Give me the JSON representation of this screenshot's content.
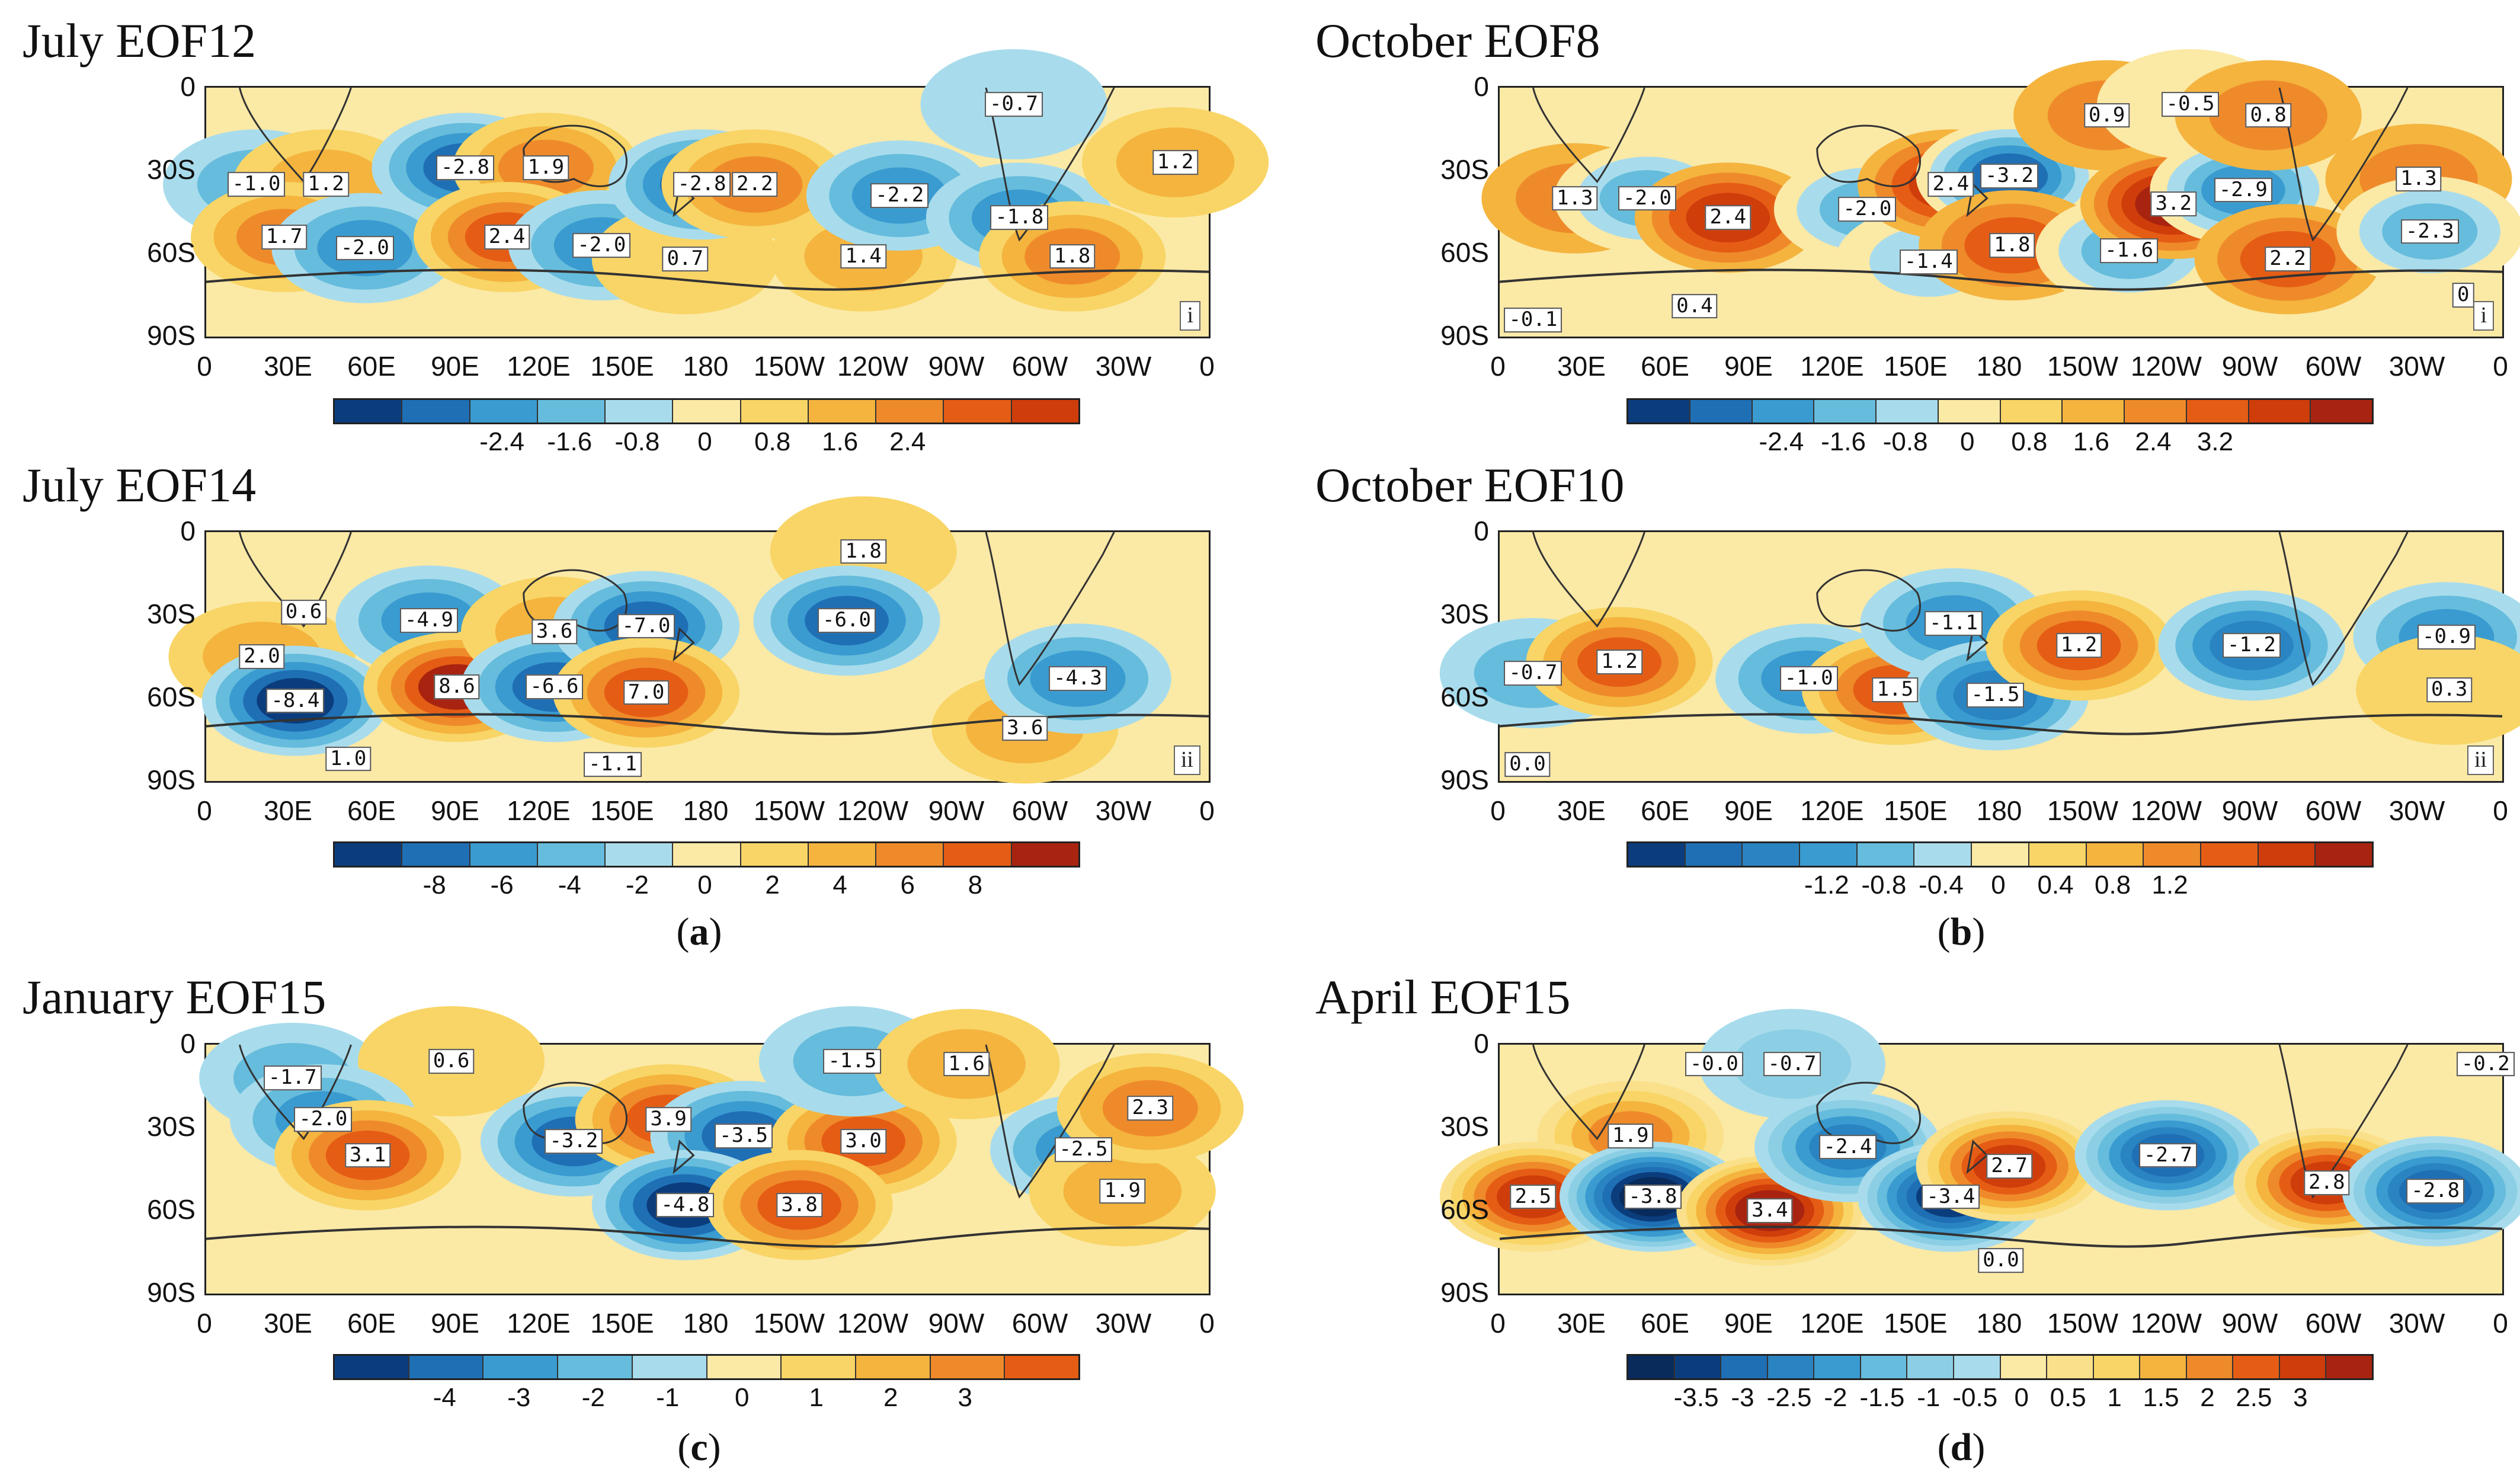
{
  "chart_data": [
    {
      "type": "heatmap",
      "title": "July EOF12",
      "panel": "i",
      "yticks": [
        "0",
        "30S",
        "60S",
        "90S"
      ],
      "xticks": [
        "0",
        "30E",
        "60E",
        "90E",
        "120E",
        "150E",
        "180",
        "150W",
        "120W",
        "90W",
        "60W",
        "30W",
        "0"
      ],
      "labels": [
        {
          "text": "-1.0",
          "lon": 18,
          "lat": -35
        },
        {
          "text": "1.2",
          "lon": 43,
          "lat": -35
        },
        {
          "text": "1.7",
          "lon": 28,
          "lat": -54
        },
        {
          "text": "-2.0",
          "lon": 57,
          "lat": -58
        },
        {
          "text": "-2.8",
          "lon": 93,
          "lat": -29
        },
        {
          "text": "1.9",
          "lon": 122,
          "lat": -29
        },
        {
          "text": "2.4",
          "lon": 108,
          "lat": -54
        },
        {
          "text": "-2.0",
          "lon": 142,
          "lat": -57
        },
        {
          "text": "0.7",
          "lon": 172,
          "lat": -62
        },
        {
          "text": "-2.8",
          "lon": 178,
          "lat": -35
        },
        {
          "text": "2.2",
          "lon": 197,
          "lat": -35
        },
        {
          "text": "1.4",
          "lon": 236,
          "lat": -61
        },
        {
          "text": "-2.2",
          "lon": 249,
          "lat": -39
        },
        {
          "text": "-0.7",
          "lon": 290,
          "lat": -6
        },
        {
          "text": "-1.8",
          "lon": 292,
          "lat": -47
        },
        {
          "text": "1.8",
          "lon": 311,
          "lat": -61
        },
        {
          "text": "1.2",
          "lon": 348,
          "lat": -27
        }
      ],
      "colorbar": {
        "ticks": [
          "-2.4",
          "-1.6",
          "-0.8",
          "0",
          "0.8",
          "1.6",
          "2.4"
        ],
        "colors": [
          "#0b3d7d",
          "#1f6fb5",
          "#3a9bd0",
          "#66bcdc",
          "#a8dcec",
          "#fbe9a6",
          "#f8d566",
          "#f4b43e",
          "#ef8a2a",
          "#e55d15",
          "#cf3d0b"
        ]
      }
    },
    {
      "type": "heatmap",
      "title": "October EOF8",
      "panel": "i",
      "yticks": [
        "0",
        "30S",
        "60S",
        "90S"
      ],
      "xticks": [
        "0",
        "30E",
        "60E",
        "90E",
        "120E",
        "150E",
        "180",
        "150W",
        "120W",
        "90W",
        "60W",
        "30W",
        "0"
      ],
      "labels": [
        {
          "text": "1.3",
          "lon": 27,
          "lat": -40
        },
        {
          "text": "-2.0",
          "lon": 53,
          "lat": -40
        },
        {
          "text": "2.4",
          "lon": 82,
          "lat": -47
        },
        {
          "text": "-2.0",
          "lon": 132,
          "lat": -44
        },
        {
          "text": "-1.4",
          "lon": 154,
          "lat": -63
        },
        {
          "text": "2.4",
          "lon": 162,
          "lat": -35
        },
        {
          "text": "-3.2",
          "lon": 183,
          "lat": -32
        },
        {
          "text": "1.8",
          "lon": 184,
          "lat": -57
        },
        {
          "text": "0.9",
          "lon": 218,
          "lat": -10
        },
        {
          "text": "-1.6",
          "lon": 226,
          "lat": -59
        },
        {
          "text": "3.2",
          "lon": 242,
          "lat": -42
        },
        {
          "text": "-0.5",
          "lon": 248,
          "lat": -6
        },
        {
          "text": "-2.9",
          "lon": 267,
          "lat": -37
        },
        {
          "text": "0.8",
          "lon": 276,
          "lat": -10
        },
        {
          "text": "2.2",
          "lon": 283,
          "lat": -62
        },
        {
          "text": "1.3",
          "lon": 330,
          "lat": -33
        },
        {
          "text": "-2.3",
          "lon": 334,
          "lat": -52
        },
        {
          "text": "-0.1",
          "lon": 12,
          "lat": -84
        },
        {
          "text": "0.4",
          "lon": 70,
          "lat": -79
        },
        {
          "text": "0",
          "lon": 346,
          "lat": -75
        }
      ],
      "colorbar": {
        "ticks": [
          "-2.4",
          "-1.6",
          "-0.8",
          "0",
          "0.8",
          "1.6",
          "2.4",
          "3.2"
        ],
        "colors": [
          "#0b3d7d",
          "#1f6fb5",
          "#3a9bd0",
          "#66bcdc",
          "#a8dcec",
          "#fbe9a6",
          "#f8d566",
          "#f4b43e",
          "#ef8a2a",
          "#e55d15",
          "#cf3d0b",
          "#a82410"
        ]
      }
    },
    {
      "type": "heatmap",
      "title": "July EOF14",
      "panel": "ii",
      "yticks": [
        "0",
        "30S",
        "60S",
        "90S"
      ],
      "xticks": [
        "0",
        "30E",
        "60E",
        "90E",
        "120E",
        "150E",
        "180",
        "150W",
        "120W",
        "90W",
        "60W",
        "30W",
        "0"
      ],
      "labels": [
        {
          "text": "0.6",
          "lon": 35,
          "lat": -29
        },
        {
          "text": "2.0",
          "lon": 20,
          "lat": -45
        },
        {
          "text": "-8.4",
          "lon": 32,
          "lat": -61
        },
        {
          "text": "1.0",
          "lon": 51,
          "lat": -82
        },
        {
          "text": "-4.9",
          "lon": 80,
          "lat": -32
        },
        {
          "text": "8.6",
          "lon": 90,
          "lat": -56
        },
        {
          "text": "3.6",
          "lon": 125,
          "lat": -36
        },
        {
          "text": "-6.6",
          "lon": 125,
          "lat": -56
        },
        {
          "text": "-7.0",
          "lon": 158,
          "lat": -34
        },
        {
          "text": "7.0",
          "lon": 158,
          "lat": -58
        },
        {
          "text": "-1.1",
          "lon": 146,
          "lat": -84
        },
        {
          "text": "1.8",
          "lon": 236,
          "lat": -7
        },
        {
          "text": "-6.0",
          "lon": 230,
          "lat": -32
        },
        {
          "text": "3.6",
          "lon": 294,
          "lat": -71
        },
        {
          "text": "-4.3",
          "lon": 313,
          "lat": -53
        }
      ],
      "colorbar": {
        "ticks": [
          "-8",
          "-6",
          "-4",
          "-2",
          "0",
          "2",
          "4",
          "6",
          "8"
        ],
        "colors": [
          "#0b3d7d",
          "#1f6fb5",
          "#3a9bd0",
          "#66bcdc",
          "#a8dcec",
          "#fbe9a6",
          "#f8d566",
          "#f4b43e",
          "#ef8a2a",
          "#e55d15",
          "#a82410"
        ]
      }
    },
    {
      "type": "heatmap",
      "title": "October EOF10",
      "panel": "ii",
      "yticks": [
        "0",
        "30S",
        "60S",
        "90S"
      ],
      "xticks": [
        "0",
        "30E",
        "60E",
        "90E",
        "120E",
        "150E",
        "180",
        "150W",
        "120W",
        "90W",
        "60W",
        "30W",
        "0"
      ],
      "labels": [
        {
          "text": "-0.7",
          "lon": 12,
          "lat": -51
        },
        {
          "text": "1.2",
          "lon": 43,
          "lat": -47
        },
        {
          "text": "-1.0",
          "lon": 111,
          "lat": -53
        },
        {
          "text": "1.5",
          "lon": 142,
          "lat": -57
        },
        {
          "text": "-1.1",
          "lon": 163,
          "lat": -33
        },
        {
          "text": "-1.5",
          "lon": 178,
          "lat": -59
        },
        {
          "text": "1.2",
          "lon": 208,
          "lat": -41
        },
        {
          "text": "-1.2",
          "lon": 270,
          "lat": -41
        },
        {
          "text": "-0.9",
          "lon": 340,
          "lat": -38
        },
        {
          "text": "0.3",
          "lon": 341,
          "lat": -57
        },
        {
          "text": "0.0",
          "lon": 10,
          "lat": -84
        }
      ],
      "colorbar": {
        "ticks": [
          "-1.2",
          "-0.8",
          "-0.4",
          "0",
          "0.4",
          "0.8",
          "1.2"
        ],
        "colors": [
          "#0b3d7d",
          "#1f6fb5",
          "#2a84c2",
          "#3a9bd0",
          "#66bcdc",
          "#a8dcec",
          "#fbe9a6",
          "#f8d566",
          "#f4b43e",
          "#ef8a2a",
          "#e55d15",
          "#cf3d0b",
          "#a82410"
        ]
      }
    },
    {
      "type": "heatmap",
      "title": "January EOF15",
      "panel": "",
      "yticks": [
        "0",
        "30S",
        "60S",
        "90S"
      ],
      "xticks": [
        "0",
        "30E",
        "60E",
        "90E",
        "120E",
        "150E",
        "180",
        "150W",
        "120W",
        "90W",
        "60W",
        "30W",
        "0"
      ],
      "labels": [
        {
          "text": "-1.7",
          "lon": 31,
          "lat": -12
        },
        {
          "text": "0.6",
          "lon": 88,
          "lat": -6
        },
        {
          "text": "-2.0",
          "lon": 42,
          "lat": -27
        },
        {
          "text": "3.1",
          "lon": 58,
          "lat": -40
        },
        {
          "text": "-3.2",
          "lon": 132,
          "lat": -35
        },
        {
          "text": "3.9",
          "lon": 166,
          "lat": -27
        },
        {
          "text": "-3.5",
          "lon": 193,
          "lat": -33
        },
        {
          "text": "-4.8",
          "lon": 172,
          "lat": -58
        },
        {
          "text": "3.0",
          "lon": 236,
          "lat": -35
        },
        {
          "text": "3.8",
          "lon": 213,
          "lat": -58
        },
        {
          "text": "-1.5",
          "lon": 232,
          "lat": -6
        },
        {
          "text": "1.6",
          "lon": 273,
          "lat": -7
        },
        {
          "text": "-2.5",
          "lon": 315,
          "lat": -38
        },
        {
          "text": "1.9",
          "lon": 329,
          "lat": -53
        },
        {
          "text": "2.3",
          "lon": 339,
          "lat": -23
        }
      ],
      "colorbar": {
        "ticks": [
          "-4",
          "-3",
          "-2",
          "-1",
          "0",
          "1",
          "2",
          "3"
        ],
        "colors": [
          "#0b3d7d",
          "#1f6fb5",
          "#3a9bd0",
          "#66bcdc",
          "#a8dcec",
          "#fbe9a6",
          "#f8d566",
          "#f4b43e",
          "#ef8a2a",
          "#e55d15"
        ]
      }
    },
    {
      "type": "heatmap",
      "title": "April EOF15",
      "panel": "",
      "yticks": [
        "0",
        "30S",
        "60S",
        "90S"
      ],
      "xticks": [
        "0",
        "30E",
        "60E",
        "90E",
        "120E",
        "150E",
        "180",
        "150W",
        "120W",
        "90W",
        "60W",
        "30W",
        "0"
      ],
      "labels": [
        {
          "text": "-0.0",
          "lon": 77,
          "lat": -7
        },
        {
          "text": "-0.7",
          "lon": 105,
          "lat": -7
        },
        {
          "text": "1.9",
          "lon": 47,
          "lat": -33
        },
        {
          "text": "2.5",
          "lon": 12,
          "lat": -55
        },
        {
          "text": "-3.8",
          "lon": 55,
          "lat": -55
        },
        {
          "text": "3.4",
          "lon": 97,
          "lat": -60
        },
        {
          "text": "-2.4",
          "lon": 125,
          "lat": -37
        },
        {
          "text": "-3.4",
          "lon": 162,
          "lat": -55
        },
        {
          "text": "2.7",
          "lon": 183,
          "lat": -44
        },
        {
          "text": "0.0",
          "lon": 180,
          "lat": -78
        },
        {
          "text": "-2.7",
          "lon": 240,
          "lat": -40
        },
        {
          "text": "2.8",
          "lon": 297,
          "lat": -50
        },
        {
          "text": "-2.8",
          "lon": 336,
          "lat": -53
        },
        {
          "text": "-0.2",
          "lon": 354,
          "lat": -7
        }
      ],
      "colorbar": {
        "ticks": [
          "-3.5",
          "-3",
          "-2.5",
          "-2",
          "-1.5",
          "-1",
          "-0.5",
          "0",
          "0.5",
          "1",
          "1.5",
          "2",
          "2.5",
          "3"
        ],
        "colors": [
          "#082b5c",
          "#0b3d7d",
          "#1f6fb5",
          "#2a84c2",
          "#3a9bd0",
          "#66bcdc",
          "#8ccfe4",
          "#a8dcec",
          "#fbe9a6",
          "#fae08a",
          "#f8d566",
          "#f4b43e",
          "#ef8a2a",
          "#e55d15",
          "#cf3d0b",
          "#a82410"
        ]
      }
    }
  ],
  "subfigure_labels": [
    {
      "letter": "a"
    },
    {
      "letter": "b"
    },
    {
      "letter": "c"
    },
    {
      "letter": "d"
    }
  ]
}
